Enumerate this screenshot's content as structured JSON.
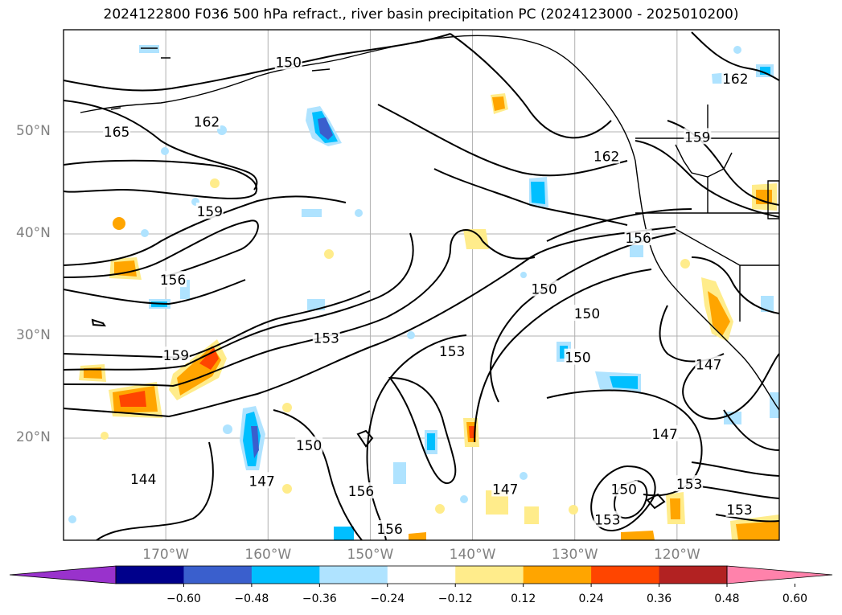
{
  "title": "2024122800 F036 500 hPa refract., river basin precipitation PC (2024123000 - 2025010200)",
  "map": {
    "extent": {
      "lon_min": -180,
      "lon_max": -110,
      "lat_min": 10,
      "lat_max": 60
    },
    "lat_ticks": [
      {
        "value": 50,
        "label": "50°N"
      },
      {
        "value": 40,
        "label": "40°N"
      },
      {
        "value": 30,
        "label": "30°N"
      },
      {
        "value": 20,
        "label": "20°N"
      }
    ],
    "lon_ticks": [
      {
        "value": -170,
        "label": "170°W"
      },
      {
        "value": -160,
        "label": "160°W"
      },
      {
        "value": -150,
        "label": "150°W"
      },
      {
        "value": -140,
        "label": "140°W"
      },
      {
        "value": -130,
        "label": "130°W"
      },
      {
        "value": -120,
        "label": "120°W"
      }
    ],
    "contour_labels": [
      {
        "text": "150",
        "lon": -158.0,
        "lat": 56.8
      },
      {
        "text": "162",
        "lon": -166.0,
        "lat": 51.0
      },
      {
        "text": "165",
        "lon": -174.8,
        "lat": 50.0
      },
      {
        "text": "162",
        "lon": -114.3,
        "lat": 55.2
      },
      {
        "text": "159",
        "lon": -118.0,
        "lat": 49.5
      },
      {
        "text": "162",
        "lon": -126.9,
        "lat": 47.6
      },
      {
        "text": "159",
        "lon": -165.7,
        "lat": 42.2
      },
      {
        "text": "156",
        "lon": -123.8,
        "lat": 39.6
      },
      {
        "text": "156",
        "lon": -169.3,
        "lat": 35.5
      },
      {
        "text": "150",
        "lon": -133.0,
        "lat": 34.6
      },
      {
        "text": "150",
        "lon": -128.8,
        "lat": 32.2
      },
      {
        "text": "153",
        "lon": -154.3,
        "lat": 29.8
      },
      {
        "text": "159",
        "lon": -169.0,
        "lat": 28.1
      },
      {
        "text": "153",
        "lon": -142.0,
        "lat": 28.5
      },
      {
        "text": "150",
        "lon": -129.7,
        "lat": 27.9
      },
      {
        "text": "147",
        "lon": -116.9,
        "lat": 27.2
      },
      {
        "text": "147",
        "lon": -121.2,
        "lat": 20.4
      },
      {
        "text": "150",
        "lon": -156.0,
        "lat": 19.3
      },
      {
        "text": "144",
        "lon": -172.2,
        "lat": 16.0
      },
      {
        "text": "147",
        "lon": -160.6,
        "lat": 15.8
      },
      {
        "text": "156",
        "lon": -150.9,
        "lat": 14.8
      },
      {
        "text": "147",
        "lon": -136.8,
        "lat": 15.0
      },
      {
        "text": "150",
        "lon": -125.2,
        "lat": 15.0
      },
      {
        "text": "153",
        "lon": -118.8,
        "lat": 15.5
      },
      {
        "text": "153",
        "lon": -113.9,
        "lat": 13.0
      },
      {
        "text": "153",
        "lon": -126.8,
        "lat": 12.0
      },
      {
        "text": "156",
        "lon": -148.1,
        "lat": 11.1
      }
    ]
  },
  "colorbar": {
    "colors": [
      "#9932cc",
      "#00008b",
      "#3a5fcd",
      "#00bfff",
      "#afe3ff",
      "#ffffff",
      "#ffec8b",
      "#ffa500",
      "#ff4500",
      "#b22222",
      "#ff82ab"
    ],
    "ticks": [
      "−0.60",
      "−0.48",
      "−0.36",
      "−0.24",
      "−0.12",
      "0.12",
      "0.24",
      "0.36",
      "0.48",
      "0.60"
    ]
  }
}
